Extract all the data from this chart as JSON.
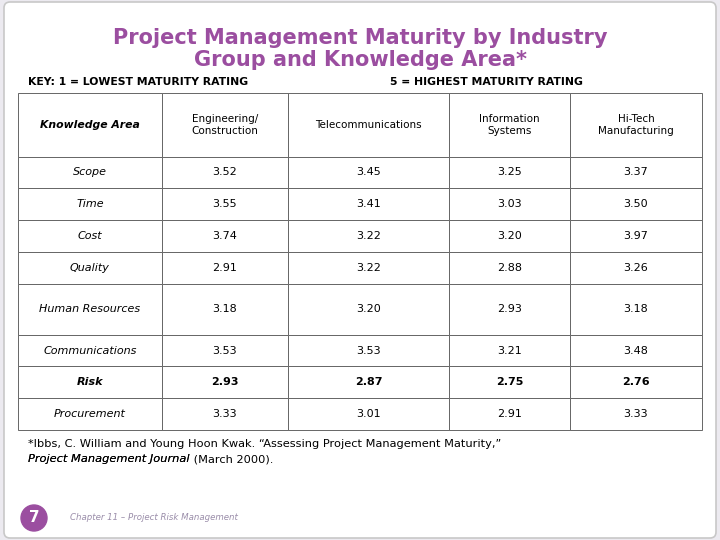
{
  "title_line1": "Project Management Maturity by Industry",
  "title_line2": "Group and Knowledge Area*",
  "title_color": "#9B4EA0",
  "key_left": "KEY: 1 = LOWEST MATURITY RATING",
  "key_right": "5 = HIGHEST MATURITY RATING",
  "col_headers": [
    "Knowledge Area",
    "Engineering/\nConstruction",
    "Telecommunications",
    "Information\nSystems",
    "Hi-Tech\nManufacturing"
  ],
  "rows": [
    [
      "Scope",
      "3.52",
      "3.45",
      "3.25",
      "3.37"
    ],
    [
      "Time",
      "3.55",
      "3.41",
      "3.03",
      "3.50"
    ],
    [
      "Cost",
      "3.74",
      "3.22",
      "3.20",
      "3.97"
    ],
    [
      "Quality",
      "2.91",
      "3.22",
      "2.88",
      "3.26"
    ],
    [
      "Human Resources",
      "3.18",
      "3.20",
      "2.93",
      "3.18"
    ],
    [
      "Communications",
      "3.53",
      "3.53",
      "3.21",
      "3.48"
    ],
    [
      "Risk",
      "2.93",
      "2.87",
      "2.75",
      "2.76"
    ],
    [
      "Procurement",
      "3.33",
      "3.01",
      "2.91",
      "3.33"
    ]
  ],
  "bold_rows": [
    6
  ],
  "footnote_line1": "*Ibbs, C. William and Young Hoon Kwak. “Assessing Project Management Maturity,”",
  "footnote_italic": "Project Management Journal",
  "footnote_end": " (March 2000).",
  "chapter_text": "Chapter 11 – Project Risk Management",
  "slide_number": "7",
  "bg_color": "#ECEAF0",
  "table_border_color": "#666666",
  "slide_number_bg": "#9B4EA0"
}
